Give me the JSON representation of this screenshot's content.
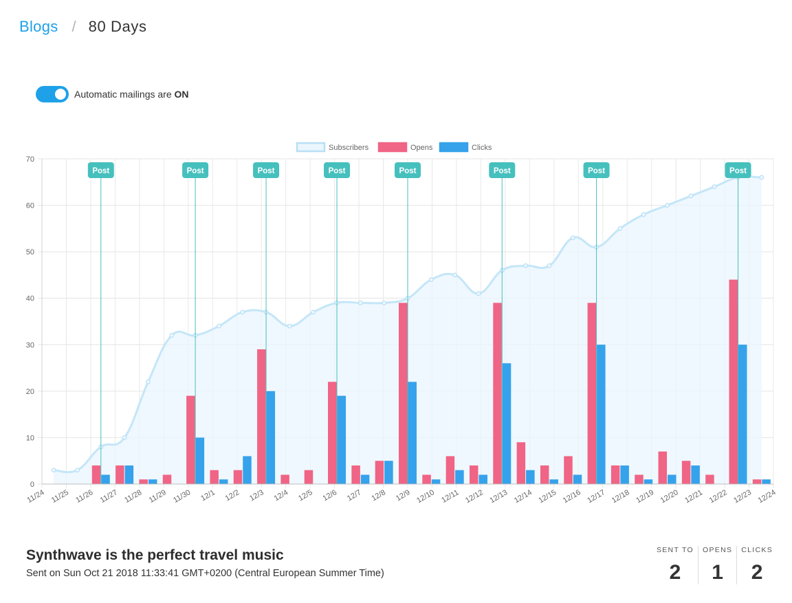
{
  "breadcrumb": {
    "parent": "Blogs",
    "separator": "/",
    "current": "80 Days"
  },
  "toggle": {
    "label": "Automatic mailings are",
    "state": "ON",
    "on": true,
    "color": "#1ea1e8"
  },
  "chart_data": {
    "type": "bar",
    "categories": [
      "11/24",
      "11/25",
      "11/26",
      "11/27",
      "11/28",
      "11/29",
      "11/30",
      "12/1",
      "12/2",
      "12/3",
      "12/4",
      "12/5",
      "12/6",
      "12/7",
      "12/8",
      "12/9",
      "12/10",
      "12/11",
      "12/12",
      "12/13",
      "12/14",
      "12/15",
      "12/16",
      "12/17",
      "12/18",
      "12/19",
      "12/20",
      "12/21",
      "12/22",
      "12/23",
      "12/24"
    ],
    "series": [
      {
        "name": "Subscribers",
        "type": "area",
        "color": "#c4e6f8",
        "values": [
          3,
          3,
          8,
          10,
          22,
          32,
          32,
          34,
          37,
          37,
          34,
          37,
          39,
          39,
          39,
          40,
          44,
          45,
          41,
          46,
          47,
          47,
          53,
          51,
          55,
          58,
          60,
          62,
          64,
          66,
          66
        ]
      },
      {
        "name": "Opens",
        "type": "bar",
        "color": "#f06485",
        "values": [
          0,
          0,
          4,
          4,
          1,
          2,
          19,
          3,
          3,
          29,
          2,
          3,
          22,
          4,
          5,
          39,
          2,
          6,
          4,
          39,
          9,
          4,
          6,
          39,
          4,
          2,
          7,
          5,
          2,
          44,
          1
        ]
      },
      {
        "name": "Clicks",
        "type": "bar",
        "color": "#36a2eb",
        "values": [
          0,
          0,
          2,
          4,
          1,
          0,
          10,
          1,
          6,
          20,
          0,
          0,
          19,
          2,
          5,
          22,
          1,
          3,
          2,
          26,
          3,
          1,
          2,
          30,
          4,
          1,
          2,
          4,
          0,
          30,
          1
        ]
      }
    ],
    "annotations": {
      "label": "Post",
      "color": "#45c0bd",
      "categories": [
        "11/26",
        "11/30",
        "12/3",
        "12/6",
        "12/9",
        "12/13",
        "12/17",
        "12/23"
      ]
    },
    "ylim": [
      0,
      70
    ],
    "yticks": [
      0,
      10,
      20,
      30,
      40,
      50,
      60,
      70
    ],
    "grid": true,
    "legend": "top-center",
    "title": "",
    "xlabel": "",
    "ylabel": ""
  },
  "mailing": {
    "title": "Synthwave is the perfect travel music",
    "sent": "Sent on Sun Oct 21 2018 11:33:41 GMT+0200 (Central European Summer Time)"
  },
  "stats": [
    {
      "label": "SENT TO",
      "value": "2"
    },
    {
      "label": "OPENS",
      "value": "1"
    },
    {
      "label": "CLICKS",
      "value": "2"
    }
  ]
}
